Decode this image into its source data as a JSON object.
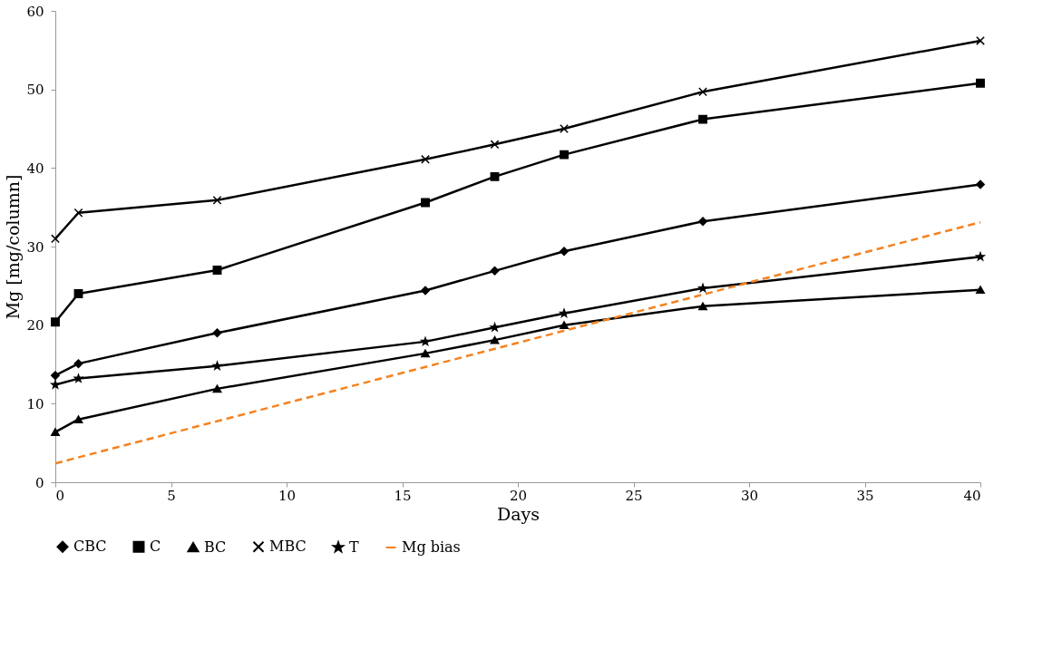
{
  "chart_data": {
    "type": "line",
    "xlabel": "Days",
    "ylabel": "Mg [mg/column]",
    "x": [
      0,
      1,
      7,
      16,
      19,
      22,
      28,
      40
    ],
    "xlim": [
      0,
      40
    ],
    "xticks": [
      0,
      5,
      10,
      15,
      20,
      25,
      30,
      35,
      40
    ],
    "ylim": [
      0,
      60
    ],
    "yticks": [
      0,
      10,
      20,
      30,
      40,
      50,
      60
    ],
    "grid": false,
    "legend": "bottom",
    "line_style": "solid",
    "series": [
      {
        "name": "CBC",
        "color": "#000000",
        "marker": "diamond",
        "values": [
          13.6,
          15.1,
          19.0,
          24.4,
          26.9,
          29.4,
          33.2,
          37.9
        ]
      },
      {
        "name": "C",
        "color": "#000000",
        "marker": "square",
        "values": [
          20.4,
          24.0,
          27.0,
          35.6,
          38.9,
          41.7,
          46.2,
          50.8
        ]
      },
      {
        "name": "BC",
        "color": "#000000",
        "marker": "triangle",
        "values": [
          6.4,
          8.0,
          11.9,
          16.4,
          18.1,
          20.0,
          22.4,
          24.5
        ]
      },
      {
        "name": "MBC",
        "color": "#000000",
        "marker": "cross",
        "values": [
          31.0,
          34.3,
          35.9,
          41.1,
          43.0,
          45.0,
          49.7,
          56.2
        ]
      },
      {
        "name": "T",
        "color": "#000000",
        "marker": "star",
        "values": [
          12.4,
          13.2,
          14.8,
          17.9,
          19.7,
          21.5,
          24.7,
          28.7
        ]
      },
      {
        "name": "Mg bias",
        "color": "#f58220",
        "marker": "none",
        "line_style": "dashed",
        "x": [
          0,
          40
        ],
        "values": [
          2.4,
          33.1
        ]
      }
    ]
  }
}
